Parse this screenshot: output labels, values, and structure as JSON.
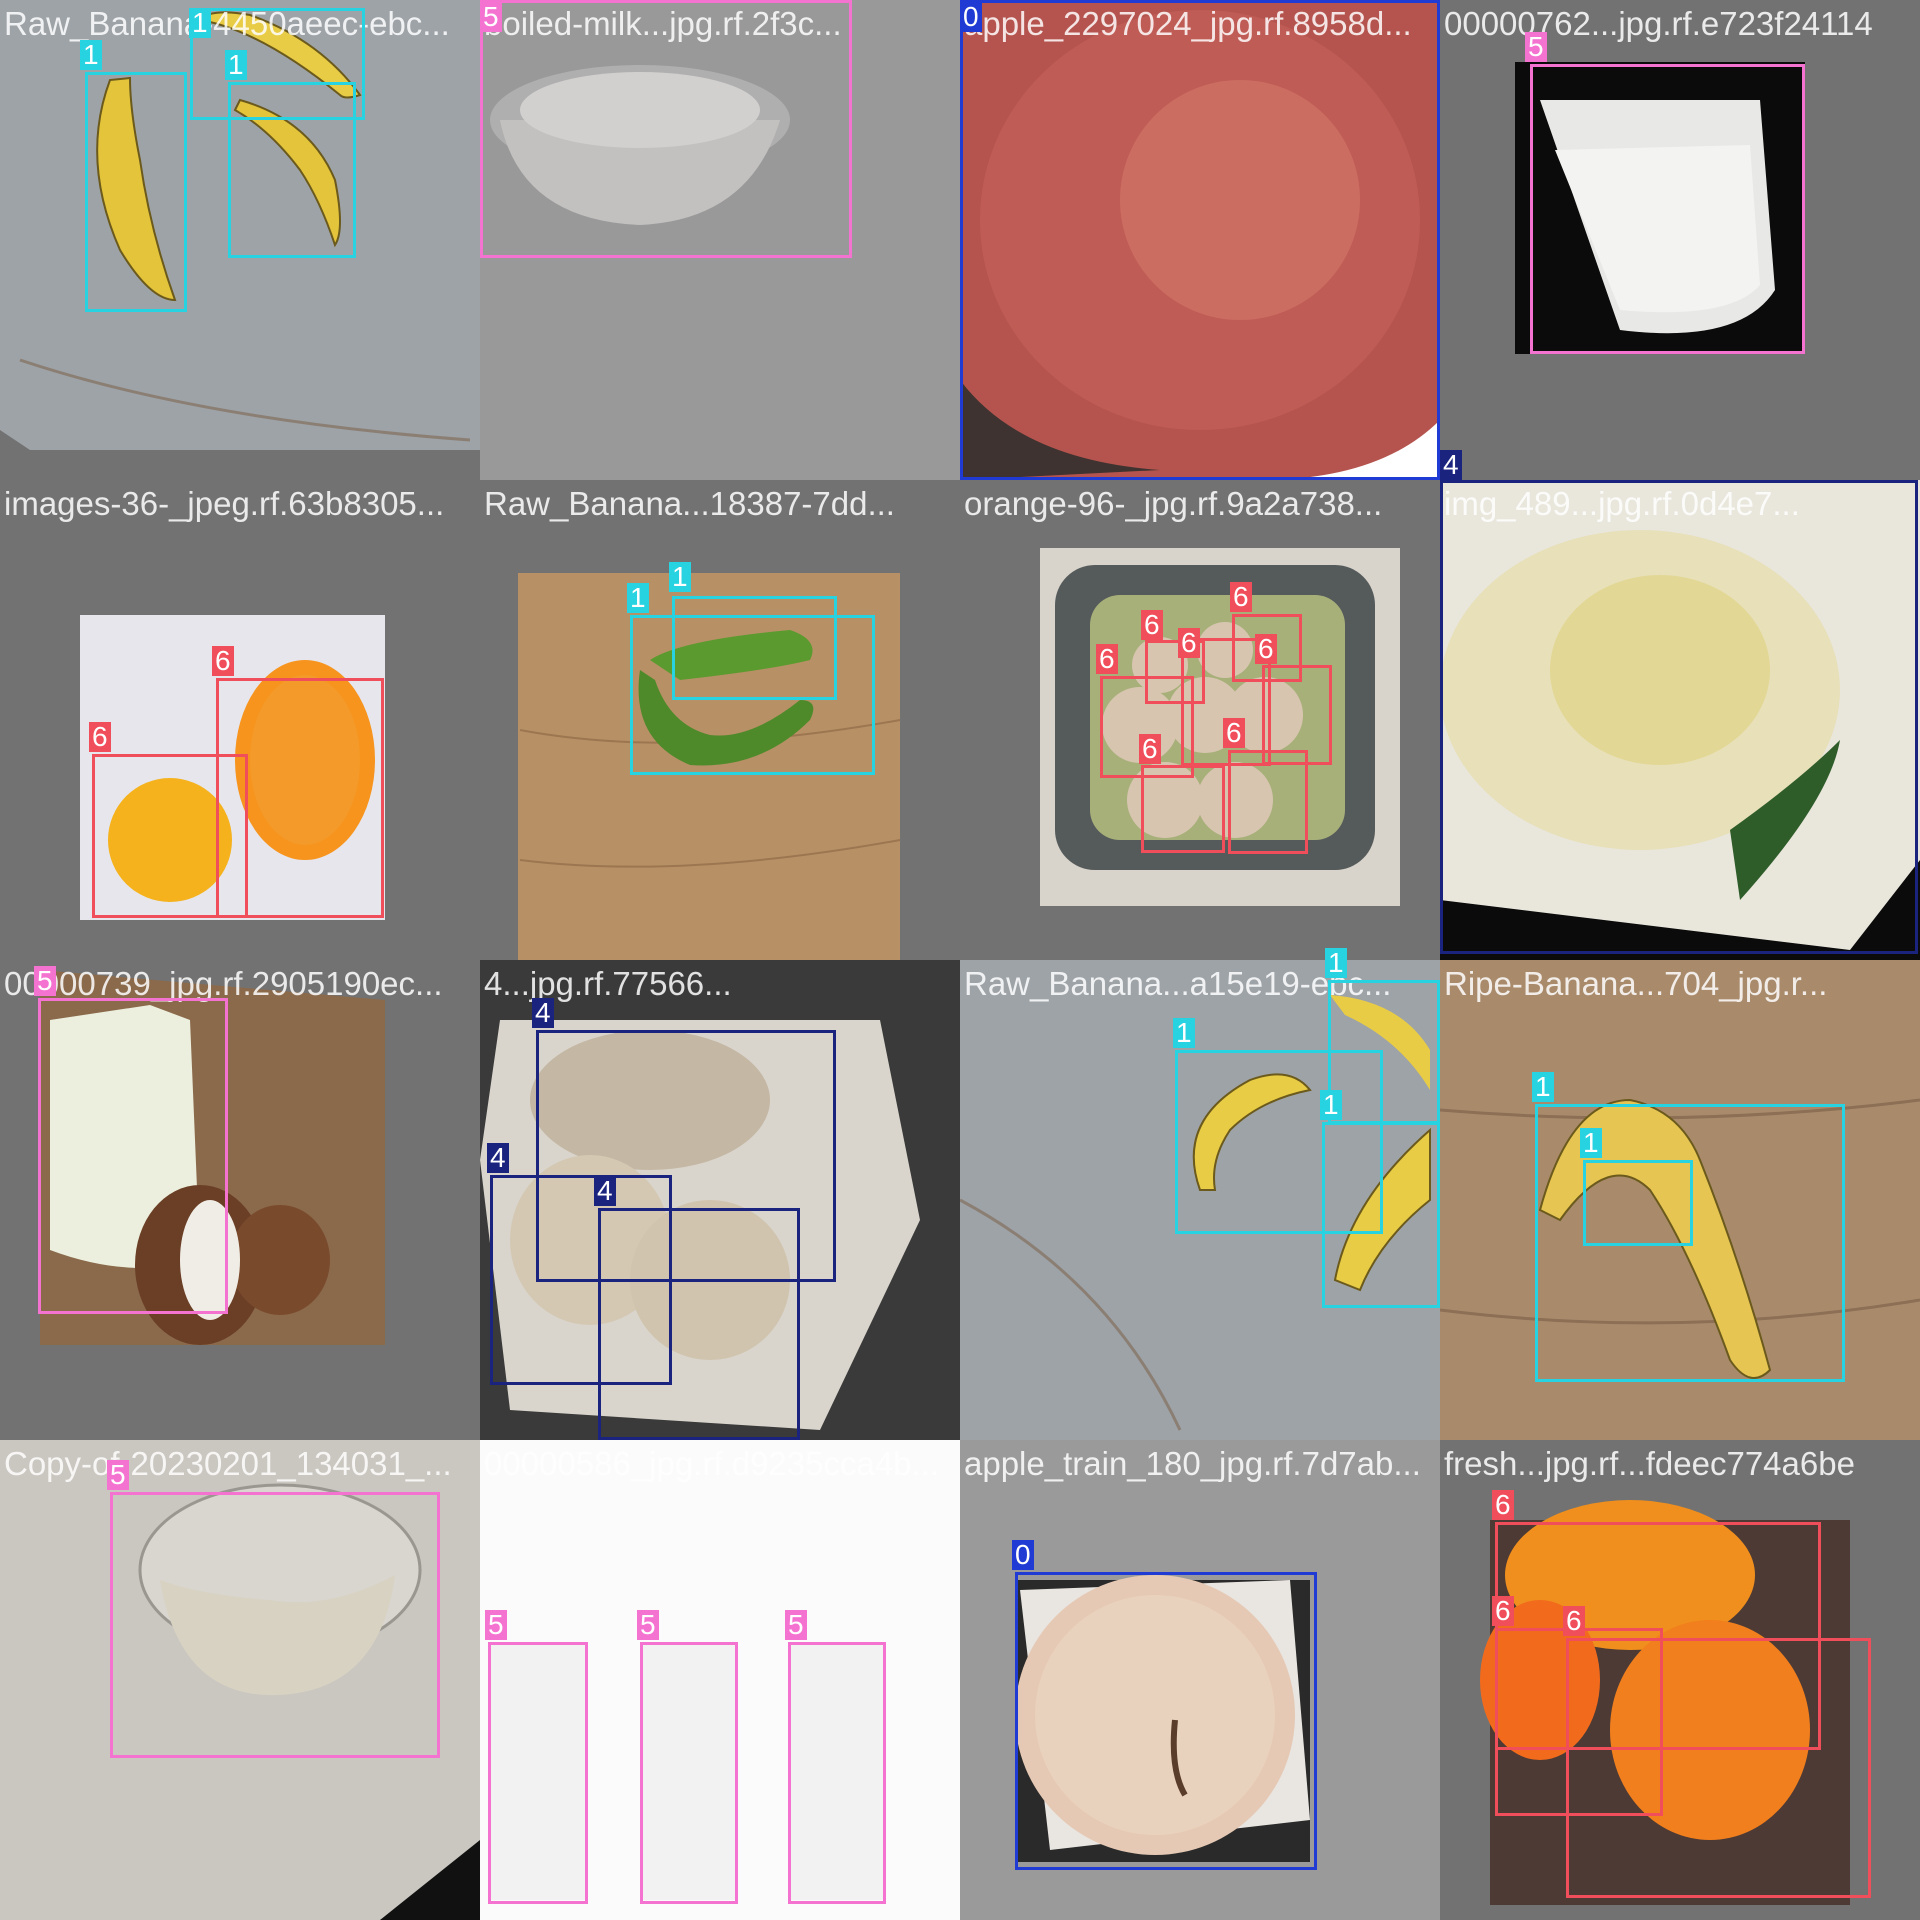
{
  "class_colors": {
    "0": "#1f3bd4",
    "1": "#27d3e0",
    "4": "#1a237e",
    "5": "#f573d0",
    "6": "#f04e5a"
  },
  "tiles": [
    {
      "title": "Raw_Banana-4450aeec-ebc...",
      "scene": "three-bananas-on-grey-floor",
      "labels": [
        "1",
        "1",
        "1"
      ]
    },
    {
      "title": "boiled-milk...jpg.rf.2f3c...",
      "scene": "bowl-of-milk-grey",
      "labels": [
        "5"
      ]
    },
    {
      "title": "apple_2297024_jpg.rf.8958d...",
      "scene": "apple-closeup",
      "labels": [
        "0"
      ]
    },
    {
      "title": "00000762...jpg.rf.e723f24114",
      "scene": "glass-of-milk",
      "labels": [
        "5"
      ]
    },
    {
      "title": "images-36-_jpeg.rf.63b8305...",
      "scene": "two-oranges",
      "labels": [
        "6",
        "6"
      ]
    },
    {
      "title": "Raw_Banana...18387-7dd...",
      "scene": "green-bananas-on-wood",
      "labels": [
        "1",
        "1"
      ]
    },
    {
      "title": "orange-96-_jpg.rf.9a2a738...",
      "scene": "oranges-in-colander",
      "labels": [
        "6",
        "6",
        "6",
        "6",
        "6",
        "6",
        "6"
      ]
    },
    {
      "title": "img_489...jpg.rf.0d4e7...",
      "scene": "fried-egg-with-rocket",
      "labels": [
        "4"
      ]
    },
    {
      "title": "00000739_jpg.rf.2905190ec...",
      "scene": "milk-bottle-with-coconut",
      "labels": [
        "5"
      ]
    },
    {
      "title": "4...jpg.rf.77566...",
      "scene": "fried-eggs-on-plate",
      "labels": [
        "4",
        "4",
        "4"
      ]
    },
    {
      "title": "Raw_Banana...a15e19-ebc...",
      "scene": "bananas-on-floor",
      "labels": [
        "1",
        "1",
        "1"
      ]
    },
    {
      "title": "Ripe-Banana...704_jpg.r...",
      "scene": "single-banana-on-wood",
      "labels": [
        "1",
        "1"
      ]
    },
    {
      "title": "Copy-of-20230201_134031_...",
      "scene": "glass-bowl-of-milk",
      "labels": [
        "5"
      ]
    },
    {
      "title": "00000586_jpg.rf.d9235cca4b...",
      "scene": "three-glasses-of-milk",
      "labels": [
        "5",
        "5",
        "5"
      ]
    },
    {
      "title": "apple_train_180_jpg.rf.7d7ab...",
      "scene": "apple-top-view",
      "labels": [
        "0"
      ]
    },
    {
      "title": "fresh...jpg.rf...fdeec774a6be",
      "scene": "three-oranges-on-granite",
      "labels": [
        "6",
        "6",
        "6"
      ]
    }
  ]
}
